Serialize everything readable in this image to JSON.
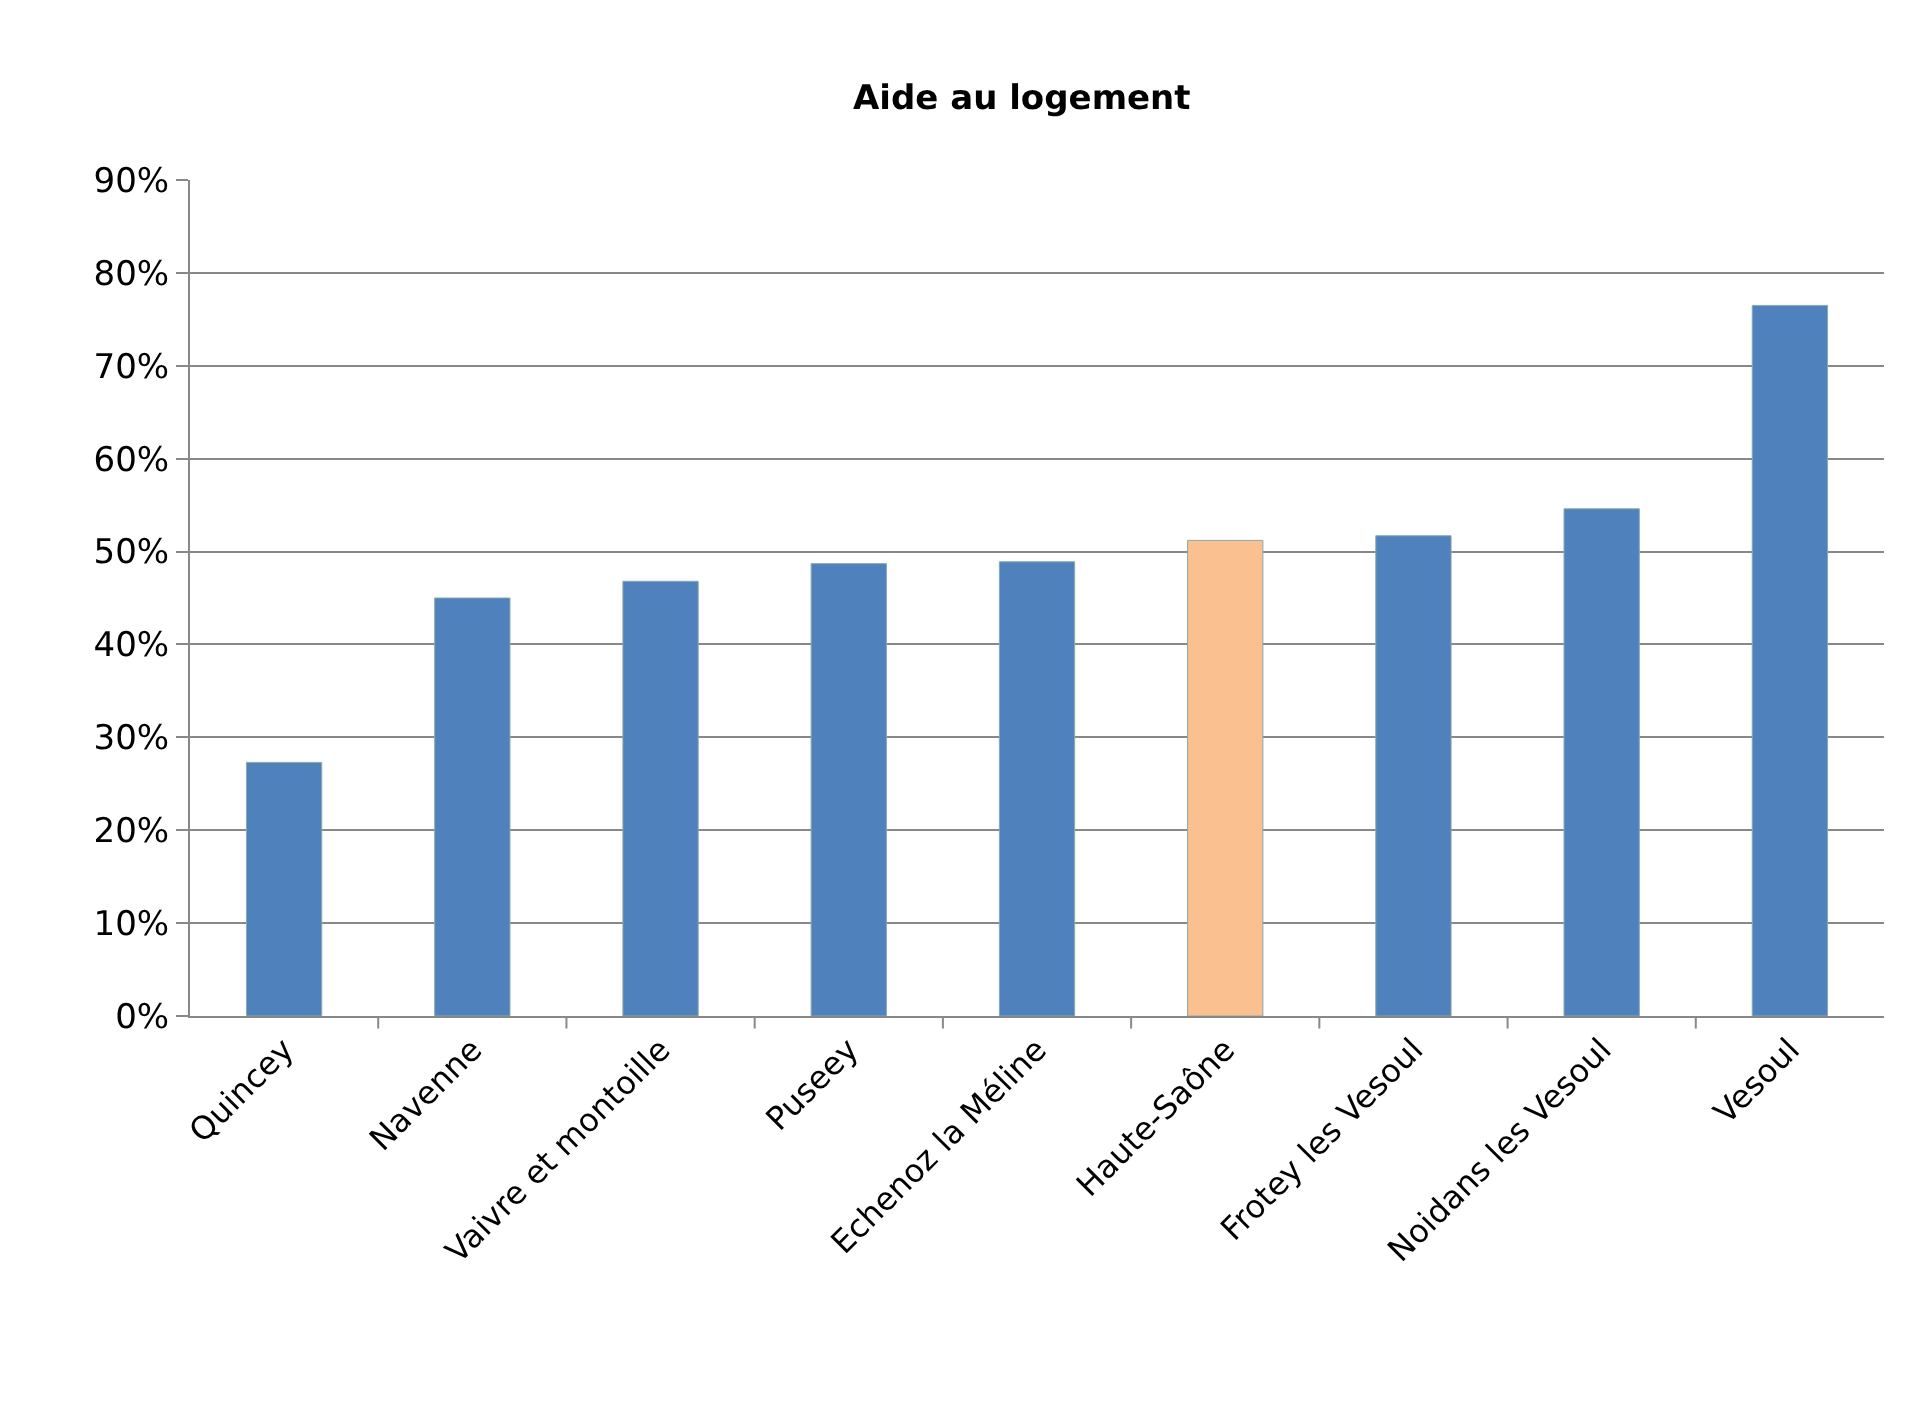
{
  "chart_data": {
    "type": "bar",
    "title": "Aide au logement",
    "categories": [
      "Quincey",
      "Navenne",
      "Vaivre et montoille",
      "Puseey",
      "Echenoz la Méline",
      "Haute-Saône",
      "Frotey les Vesoul",
      "Noidans les Vesoul",
      "Vesoul"
    ],
    "values": [
      27.3,
      45,
      46.8,
      48.7,
      48.9,
      51.2,
      51.7,
      54.6,
      76.5
    ],
    "colors": [
      "#4f81bd",
      "#4f81bd",
      "#4f81bd",
      "#4f81bd",
      "#4f81bd",
      "#fac090",
      "#4f81bd",
      "#4f81bd",
      "#4f81bd"
    ],
    "ylim": [
      0,
      90
    ],
    "yticks": [
      {
        "value": 0,
        "label": "0%"
      },
      {
        "value": 10,
        "label": "10%"
      },
      {
        "value": 20,
        "label": "20%"
      },
      {
        "value": 30,
        "label": "30%"
      },
      {
        "value": 40,
        "label": "40%"
      },
      {
        "value": 50,
        "label": "50%"
      },
      {
        "value": 60,
        "label": "60%"
      },
      {
        "value": 70,
        "label": "70%"
      },
      {
        "value": 80,
        "label": "80%"
      },
      {
        "value": 90,
        "label": "90%"
      }
    ],
    "grid": "y",
    "legend": false
  }
}
